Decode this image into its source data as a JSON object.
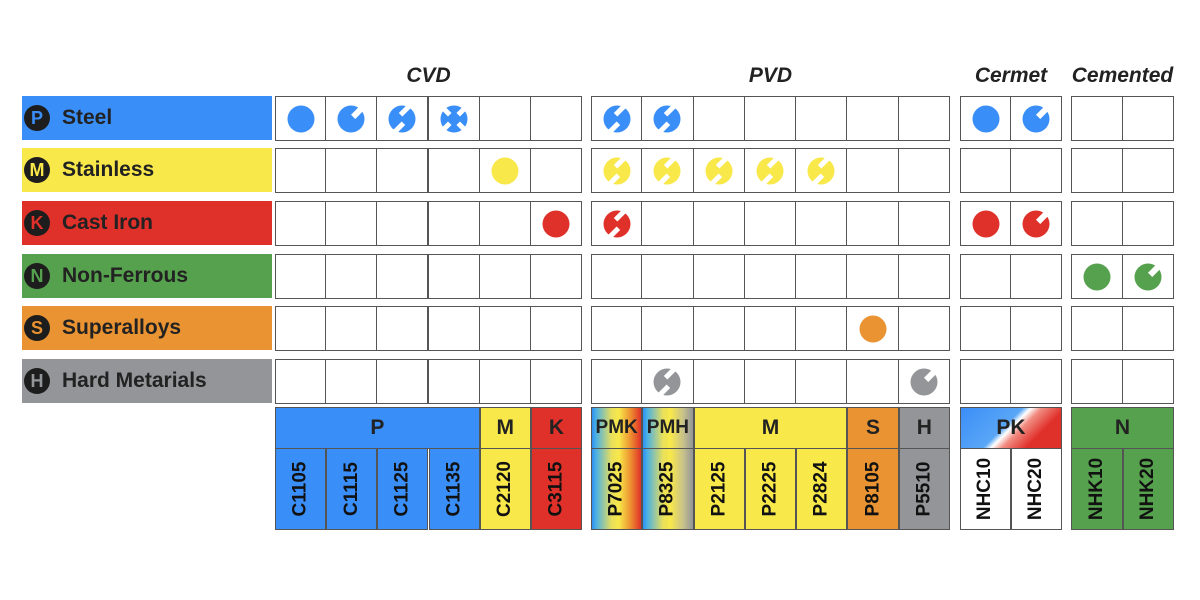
{
  "sections": [
    {
      "title": "CVD",
      "cols": 6
    },
    {
      "title": "PVD",
      "cols": 7
    },
    {
      "title": "Cermet",
      "cols": 2
    },
    {
      "title": "Cemented",
      "cols": 2
    }
  ],
  "colors": {
    "P": "#3a8ef7",
    "M": "#f8e84a",
    "K": "#e0302a",
    "N": "#56a14d",
    "S": "#ea9332",
    "H": "#939598"
  },
  "materials": [
    {
      "code": "P",
      "label": "Steel"
    },
    {
      "code": "M",
      "label": "Stainless"
    },
    {
      "code": "K",
      "label": "Cast Iron"
    },
    {
      "code": "N",
      "label": "Non-Ferrous"
    },
    {
      "code": "S",
      "label": "Superalloys"
    },
    {
      "code": "H",
      "label": "Hard Metarials"
    }
  ],
  "symbols": [
    [
      "full",
      "notch",
      "double",
      "cross",
      "",
      "",
      "double",
      "double",
      "",
      "",
      "",
      "",
      "",
      "full",
      "notch",
      "",
      ""
    ],
    [
      "",
      "",
      "",
      "",
      "full",
      "",
      "double",
      "double",
      "double",
      "double",
      "double",
      "",
      "",
      "",
      "",
      "",
      ""
    ],
    [
      "",
      "",
      "",
      "",
      "",
      "full",
      "double",
      "",
      "",
      "",
      "",
      "",
      "",
      "full",
      "notch",
      "",
      ""
    ],
    [
      "",
      "",
      "",
      "",
      "",
      "",
      "",
      "",
      "",
      "",
      "",
      "",
      "",
      "",
      "",
      "full",
      "notch"
    ],
    [
      "",
      "",
      "",
      "",
      "",
      "",
      "",
      "",
      "",
      "",
      "",
      "full",
      "",
      "",
      "",
      "",
      ""
    ],
    [
      "",
      "",
      "",
      "",
      "",
      "",
      "",
      "double",
      "",
      "",
      "",
      "",
      "notch",
      "",
      "",
      "",
      ""
    ]
  ],
  "application_groups": [
    {
      "label": "P",
      "span": 4,
      "fill": "P"
    },
    {
      "label": "M",
      "span": 1,
      "fill": "M"
    },
    {
      "label": "K",
      "span": 1,
      "fill": "K"
    },
    {
      "label": "PMK",
      "span": 1,
      "fill": "pmk"
    },
    {
      "label": "PMH",
      "span": 1,
      "fill": "pmh"
    },
    {
      "label": "M",
      "span": 3,
      "fill": "M"
    },
    {
      "label": "S",
      "span": 1,
      "fill": "S"
    },
    {
      "label": "H",
      "span": 1,
      "fill": "H"
    },
    {
      "label": "PK",
      "span": 2,
      "fill": "pk"
    },
    {
      "label": "N",
      "span": 2,
      "fill": "N"
    }
  ],
  "grades": [
    "C1105",
    "C1115",
    "C1125",
    "C1135",
    "C2120",
    "C3115",
    "P7025",
    "P8325",
    "P2125",
    "P2225",
    "P2824",
    "P8105",
    "P5510",
    "NHC10",
    "NHC20",
    "NHK10",
    "NHK20"
  ]
}
